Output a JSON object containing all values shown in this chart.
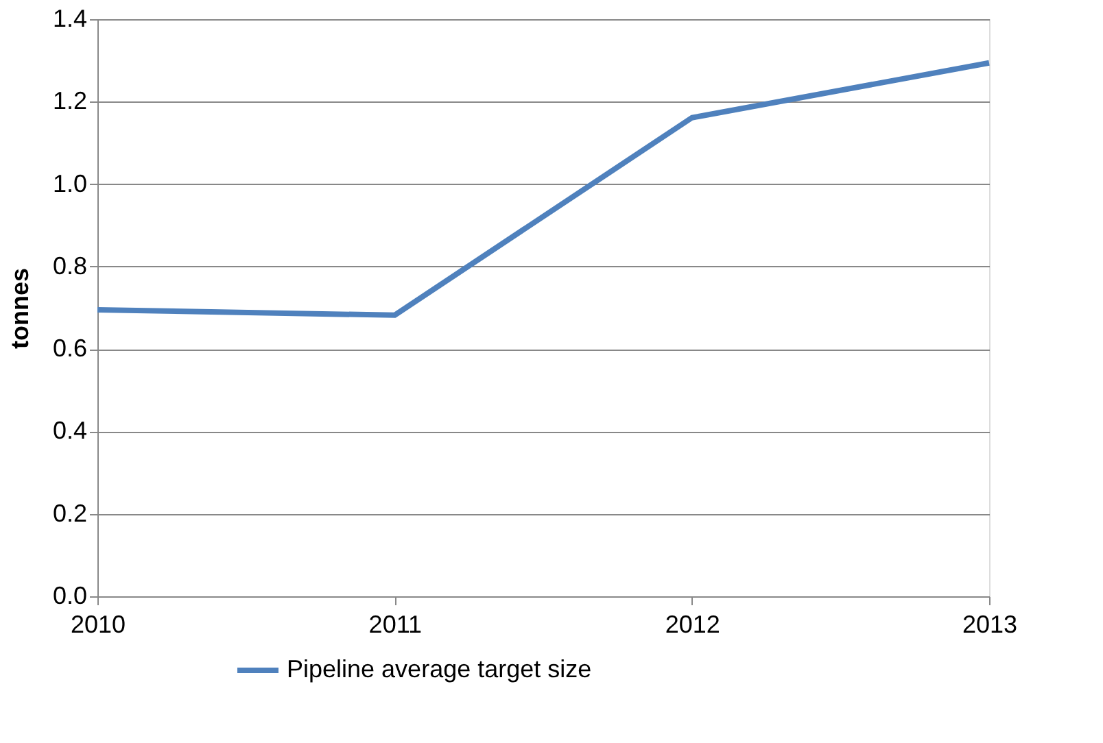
{
  "chart_data": {
    "type": "line",
    "ylabel": "tonnes",
    "x": [
      2010,
      2011,
      2012,
      2013
    ],
    "series": [
      {
        "name": "Pipeline average target size",
        "color": "#4f81bd",
        "values": [
          0.695,
          0.682,
          1.161,
          1.294
        ]
      }
    ],
    "xlim": [
      2010,
      2013
    ],
    "xticks": [
      2010,
      2011,
      2012,
      2013
    ],
    "ylim": [
      0,
      1.4
    ],
    "yticks": [
      {
        "value": 0,
        "label": "0.0"
      },
      0.2,
      0.4,
      0.6,
      0.8,
      {
        "value": 1,
        "label": "1.0"
      },
      1.2,
      1.4
    ],
    "grid": "y",
    "legend": "bottom",
    "marker": "none",
    "line_style": "solid"
  }
}
